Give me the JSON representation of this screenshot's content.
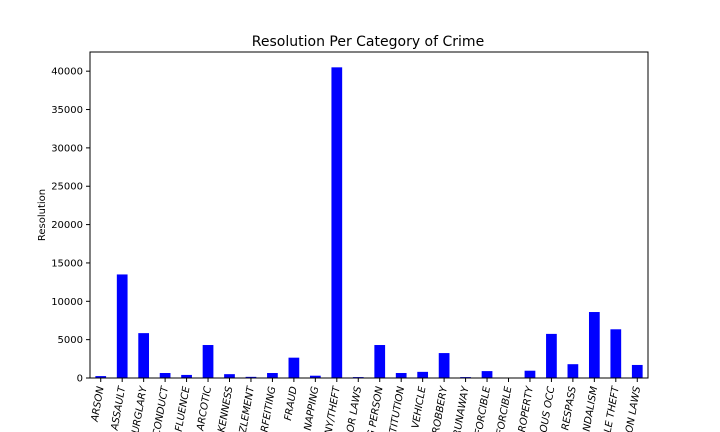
{
  "chart_data": {
    "type": "bar",
    "title": "Resolution Per Category of Crime",
    "xlabel": "",
    "ylabel": "Resolution",
    "ylim": [
      0,
      42500
    ],
    "yticks": [
      0,
      5000,
      10000,
      15000,
      20000,
      25000,
      30000,
      35000,
      40000
    ],
    "grid": false,
    "bar_color": "#0000ff",
    "categories": [
      "ARSON",
      "ASSAULT",
      "URGLARY",
      "CONDUCT",
      "FLUENCE",
      "ARCOTIC",
      "KENNESS",
      "ZLEMENT",
      "RFEITING",
      "FRAUD",
      "NAPPING",
      "NY/THEFT",
      "OR LAWS",
      "G PERSON",
      "TITUTION",
      "VEHICLE",
      "ROBBERY",
      "RUNAWAY",
      "FORCIBLE",
      "FORCIBLE",
      "ROPERTY",
      "OUS OCC",
      "RESPASS",
      "NDALISM",
      "LE THEFT",
      "ON LAWS"
    ],
    "values": [
      250,
      13500,
      5850,
      650,
      400,
      4300,
      500,
      150,
      650,
      2650,
      300,
      40500,
      120,
      4300,
      650,
      800,
      3250,
      120,
      900,
      50,
      950,
      5750,
      1800,
      8600,
      6350,
      1700
    ]
  }
}
